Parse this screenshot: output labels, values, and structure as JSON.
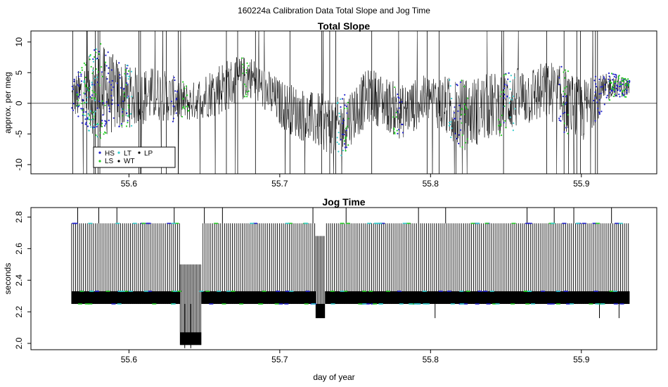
{
  "figure": {
    "title": "160224a   Calibration Data Total Slope and Jog Time",
    "xlabel": "day of year"
  },
  "colors": {
    "background": "#ffffff",
    "trace": "#000000",
    "HS": "#1f1fcc",
    "LS": "#22cc22",
    "LT": "#33cccc",
    "WT": "#000000",
    "LP": "#000000"
  },
  "legend": {
    "entries": [
      {
        "key": "HS",
        "label": "HS"
      },
      {
        "key": "LS",
        "label": "LS"
      },
      {
        "key": "LT",
        "label": "LT"
      },
      {
        "key": "WT",
        "label": "WT"
      },
      {
        "key": "LP",
        "label": "LP"
      }
    ]
  },
  "chart_data": [
    {
      "type": "line",
      "title": "Total Slope",
      "xlabel": "",
      "ylabel": "approx. per meg",
      "xlim": [
        55.535,
        55.95
      ],
      "ylim": [
        -11.5,
        11.8
      ],
      "x_ticks": [
        55.6,
        55.7,
        55.8,
        55.9
      ],
      "x_tick_labels": [
        "55.6",
        "55.7",
        "55.8",
        "55.9"
      ],
      "y_ticks": [
        -10,
        -5,
        0,
        5,
        10
      ],
      "y_tick_labels": [
        "-10",
        "-5",
        "0",
        "5",
        "10"
      ],
      "reference_line": 0,
      "data_range": [
        55.562,
        55.932
      ],
      "series": [
        {
          "name": "WT",
          "envelope": {
            "x": [
              55.562,
              55.58,
              55.6,
              55.62,
              55.64,
              55.66,
              55.68,
              55.7,
              55.72,
              55.74,
              55.76,
              55.78,
              55.8,
              55.82,
              55.84,
              55.86,
              55.88,
              55.9,
              55.92,
              55.932
            ],
            "y_low": [
              -2,
              -6,
              -4,
              -3,
              -3,
              -2,
              1,
              -4,
              -7,
              -9,
              -3,
              -6,
              -3,
              -8,
              -6,
              -4,
              -3,
              -7,
              1,
              1
            ],
            "y_high": [
              4,
              10,
              6,
              6,
              3,
              7,
              8,
              4,
              2,
              1,
              6,
              3,
              5,
              4,
              5,
              6,
              7,
              4,
              5,
              4
            ]
          }
        },
        {
          "name": "HS",
          "segments": [
            [
              55.562,
              55.59
            ],
            [
              55.592,
              55.6
            ],
            [
              55.628,
              55.632
            ],
            [
              55.74,
              55.745
            ],
            [
              55.778,
              55.782
            ],
            [
              55.815,
              55.82
            ],
            [
              55.848,
              55.852
            ],
            [
              55.885,
              55.89
            ],
            [
              55.908,
              55.932
            ]
          ]
        },
        {
          "name": "LS",
          "segments": [
            [
              55.565,
              55.585
            ],
            [
              55.595,
              55.6
            ],
            [
              55.635,
              55.64
            ],
            [
              55.675,
              55.68
            ],
            [
              55.742,
              55.746
            ],
            [
              55.775,
              55.778
            ],
            [
              55.82,
              55.825
            ],
            [
              55.845,
              55.85
            ],
            [
              55.888,
              55.892
            ],
            [
              55.918,
              55.932
            ]
          ]
        },
        {
          "name": "LT",
          "segments": [
            [
              55.57,
              55.58
            ],
            [
              55.598,
              55.602
            ],
            [
              55.738,
              55.742
            ],
            [
              55.812,
              55.815
            ],
            [
              55.852,
              55.856
            ]
          ]
        },
        {
          "name": "LP",
          "segments": []
        }
      ]
    },
    {
      "type": "line",
      "title": "Jog Time",
      "xlabel": "day of year",
      "ylabel": "seconds",
      "xlim": [
        55.535,
        55.95
      ],
      "ylim": [
        1.96,
        2.86
      ],
      "x_ticks": [
        55.6,
        55.7,
        55.8,
        55.9
      ],
      "x_tick_labels": [
        "55.6",
        "55.7",
        "55.8",
        "55.9"
      ],
      "y_ticks": [
        2.0,
        2.2,
        2.4,
        2.6,
        2.8
      ],
      "y_tick_labels": [
        "2.0",
        "2.2",
        "2.4",
        "2.6",
        "2.8"
      ],
      "series": [
        {
          "name": "WT",
          "dense_band": {
            "x_start": 55.562,
            "x_end": 55.932,
            "y_low": 2.25,
            "y_high": 2.33
          },
          "upper_level": 2.76,
          "gaps": [
            [
              55.634,
              55.648
            ],
            [
              55.724,
              55.73
            ]
          ],
          "segments": [
            {
              "x_start": 55.634,
              "x_end": 55.648,
              "y_low": 1.99,
              "y_high": 2.07,
              "upper": 2.5
            },
            {
              "x_start": 55.724,
              "x_end": 55.73,
              "y_low": 2.16,
              "y_high": 2.25,
              "upper": 2.68
            }
          ],
          "outliers": [
            [
              55.566,
              2.86
            ],
            [
              55.58,
              2.86
            ],
            [
              55.592,
              2.86
            ],
            [
              55.63,
              2.86
            ],
            [
              55.662,
              2.86
            ],
            [
              55.722,
              2.86
            ],
            [
              55.792,
              2.86
            ],
            [
              55.81,
              2.86
            ],
            [
              55.864,
              2.86
            ],
            [
              55.882,
              2.86
            ],
            [
              55.895,
              2.86
            ],
            [
              55.92,
              2.86
            ],
            [
              55.744,
              2.86
            ],
            [
              55.65,
              2.86
            ],
            [
              55.637,
              1.97
            ],
            [
              55.641,
              1.97
            ],
            [
              55.803,
              2.16
            ],
            [
              55.912,
              2.16
            ],
            [
              55.925,
              2.16
            ]
          ]
        },
        {
          "name": "HS",
          "level_low": 2.25,
          "level_mid": 2.33,
          "level_high": 2.76
        },
        {
          "name": "LS",
          "level_low": 2.25,
          "level_mid": 2.33,
          "level_high": 2.76
        },
        {
          "name": "LT",
          "level_low": 2.25,
          "level_mid": 2.33,
          "level_high": 2.76
        }
      ]
    }
  ]
}
